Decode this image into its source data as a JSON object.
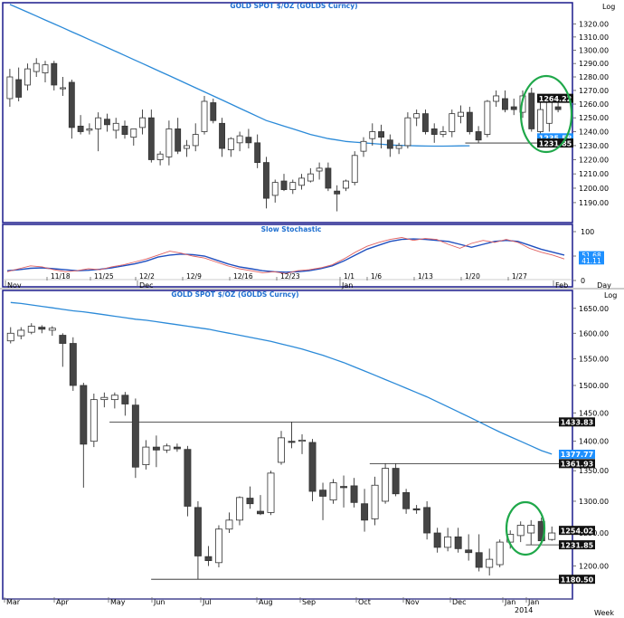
{
  "colors": {
    "background": "#ffffff",
    "frame": "#1a1a8c",
    "title": "#1e6fd0",
    "ma_line": "#2b8ad8",
    "candle": "#333333",
    "highlight_circle": "#1fa84a",
    "stoch_k": "#1f4fbf",
    "stoch_d": "#e06060",
    "tag_black": "#111111",
    "tag_blue": "#1e90ff"
  },
  "chart_data": [
    {
      "panel": "daily-price",
      "type": "candlestick",
      "title": "GOLD SPOT $/OZ (GOLDS Curncy)",
      "scale_label": "Log",
      "y_ticks": [
        1190,
        1200,
        1210,
        1220,
        1230,
        1240,
        1250,
        1260,
        1270,
        1280,
        1290,
        1300,
        1310,
        1320
      ],
      "y_tick_labels": [
        "1190.00",
        "1200.00",
        "1210.00",
        "1220.00",
        "1230.00",
        "1240.00",
        "1250.00",
        "1260.00",
        "1270.00",
        "1280.00",
        "1290.00",
        "1300.00",
        "1310.00",
        "1320.00"
      ],
      "ylim": [
        1180,
        1330
      ],
      "candles": [
        {
          "o": 1264,
          "h": 1286,
          "l": 1258,
          "c": 1280
        },
        {
          "o": 1278,
          "h": 1287,
          "l": 1262,
          "c": 1265
        },
        {
          "o": 1274,
          "h": 1290,
          "l": 1270,
          "c": 1286
        },
        {
          "o": 1284,
          "h": 1294,
          "l": 1280,
          "c": 1290
        },
        {
          "o": 1283,
          "h": 1292,
          "l": 1276,
          "c": 1289
        },
        {
          "o": 1290,
          "h": 1292,
          "l": 1270,
          "c": 1274
        },
        {
          "o": 1272,
          "h": 1280,
          "l": 1266,
          "c": 1272
        },
        {
          "o": 1276,
          "h": 1278,
          "l": 1235,
          "c": 1243
        },
        {
          "o": 1244,
          "h": 1252,
          "l": 1238,
          "c": 1240
        },
        {
          "o": 1241,
          "h": 1246,
          "l": 1238,
          "c": 1242
        },
        {
          "o": 1242,
          "h": 1254,
          "l": 1226,
          "c": 1250
        },
        {
          "o": 1249,
          "h": 1253,
          "l": 1240,
          "c": 1245
        },
        {
          "o": 1241,
          "h": 1250,
          "l": 1235,
          "c": 1246
        },
        {
          "o": 1244,
          "h": 1248,
          "l": 1235,
          "c": 1238
        },
        {
          "o": 1236,
          "h": 1242,
          "l": 1230,
          "c": 1242
        },
        {
          "o": 1243,
          "h": 1256,
          "l": 1238,
          "c": 1250
        },
        {
          "o": 1250,
          "h": 1256,
          "l": 1218,
          "c": 1220
        },
        {
          "o": 1220,
          "h": 1226,
          "l": 1216,
          "c": 1224
        },
        {
          "o": 1222,
          "h": 1248,
          "l": 1216,
          "c": 1242
        },
        {
          "o": 1242,
          "h": 1250,
          "l": 1224,
          "c": 1226
        },
        {
          "o": 1228,
          "h": 1234,
          "l": 1222,
          "c": 1230
        },
        {
          "o": 1230,
          "h": 1246,
          "l": 1226,
          "c": 1238
        },
        {
          "o": 1240,
          "h": 1266,
          "l": 1238,
          "c": 1262
        },
        {
          "o": 1261,
          "h": 1264,
          "l": 1246,
          "c": 1248
        },
        {
          "o": 1246,
          "h": 1250,
          "l": 1222,
          "c": 1228
        },
        {
          "o": 1227,
          "h": 1236,
          "l": 1222,
          "c": 1235
        },
        {
          "o": 1232,
          "h": 1240,
          "l": 1226,
          "c": 1237
        },
        {
          "o": 1236,
          "h": 1242,
          "l": 1228,
          "c": 1232
        },
        {
          "o": 1232,
          "h": 1238,
          "l": 1214,
          "c": 1218
        },
        {
          "o": 1218,
          "h": 1222,
          "l": 1186,
          "c": 1193
        },
        {
          "o": 1195,
          "h": 1206,
          "l": 1190,
          "c": 1204
        },
        {
          "o": 1205,
          "h": 1210,
          "l": 1198,
          "c": 1199
        },
        {
          "o": 1199,
          "h": 1206,
          "l": 1196,
          "c": 1204
        },
        {
          "o": 1202,
          "h": 1210,
          "l": 1199,
          "c": 1207
        },
        {
          "o": 1205,
          "h": 1214,
          "l": 1204,
          "c": 1210
        },
        {
          "o": 1212,
          "h": 1218,
          "l": 1206,
          "c": 1214
        },
        {
          "o": 1214,
          "h": 1218,
          "l": 1198,
          "c": 1200
        },
        {
          "o": 1198,
          "h": 1202,
          "l": 1184,
          "c": 1196
        },
        {
          "o": 1200,
          "h": 1206,
          "l": 1198,
          "c": 1205
        },
        {
          "o": 1204,
          "h": 1226,
          "l": 1202,
          "c": 1223
        },
        {
          "o": 1226,
          "h": 1236,
          "l": 1222,
          "c": 1233
        },
        {
          "o": 1235,
          "h": 1246,
          "l": 1230,
          "c": 1240
        },
        {
          "o": 1240,
          "h": 1245,
          "l": 1228,
          "c": 1236
        },
        {
          "o": 1234,
          "h": 1238,
          "l": 1222,
          "c": 1228
        },
        {
          "o": 1228,
          "h": 1232,
          "l": 1224,
          "c": 1230
        },
        {
          "o": 1230,
          "h": 1254,
          "l": 1228,
          "c": 1250
        },
        {
          "o": 1250,
          "h": 1256,
          "l": 1244,
          "c": 1253
        },
        {
          "o": 1253,
          "h": 1256,
          "l": 1238,
          "c": 1240
        },
        {
          "o": 1242,
          "h": 1246,
          "l": 1232,
          "c": 1238
        },
        {
          "o": 1238,
          "h": 1244,
          "l": 1236,
          "c": 1240
        },
        {
          "o": 1240,
          "h": 1256,
          "l": 1236,
          "c": 1253
        },
        {
          "o": 1251,
          "h": 1259,
          "l": 1246,
          "c": 1254
        },
        {
          "o": 1254,
          "h": 1258,
          "l": 1238,
          "c": 1240
        },
        {
          "o": 1240,
          "h": 1244,
          "l": 1232,
          "c": 1234
        },
        {
          "o": 1238,
          "h": 1263,
          "l": 1236,
          "c": 1262
        },
        {
          "o": 1262,
          "h": 1270,
          "l": 1258,
          "c": 1266
        },
        {
          "o": 1264,
          "h": 1270,
          "l": 1254,
          "c": 1256
        },
        {
          "o": 1258,
          "h": 1264,
          "l": 1252,
          "c": 1256
        },
        {
          "o": 1254,
          "h": 1270,
          "l": 1250,
          "c": 1266
        },
        {
          "o": 1268,
          "h": 1272,
          "l": 1240,
          "c": 1242
        },
        {
          "o": 1240,
          "h": 1262,
          "l": 1236,
          "c": 1256
        },
        {
          "o": 1246,
          "h": 1262,
          "l": 1240,
          "c": 1262
        },
        {
          "o": 1258,
          "h": 1262,
          "l": 1254,
          "c": 1256
        }
      ],
      "moving_average": [
        1335,
        1332,
        1329,
        1326,
        1323,
        1320,
        1317,
        1314,
        1311,
        1308,
        1305,
        1302,
        1299,
        1296,
        1293,
        1290,
        1287,
        1284,
        1281,
        1278,
        1275,
        1272,
        1269,
        1266,
        1263,
        1260,
        1257,
        1254,
        1251,
        1248,
        1246,
        1244,
        1242,
        1240,
        1238,
        1236.5,
        1235,
        1234,
        1233,
        1232.5,
        1232,
        1231.5,
        1231,
        1230.5,
        1230.2,
        1230,
        1229.8,
        1229.7,
        1229.6,
        1229.6,
        1229.7,
        1229.8,
        1229.9
      ],
      "horizontal_line": {
        "value": 1231.85,
        "from_index": 52
      },
      "value_tags": [
        {
          "value": 1264.22,
          "label": "1264.22",
          "style": "black"
        },
        {
          "value": 1235.58,
          "label": "1235.58",
          "style": "blue"
        },
        {
          "value": 1231.85,
          "label": "1231.85",
          "style": "black"
        }
      ],
      "x_labels": [
        "Nov",
        "Dec",
        "Jan",
        "Feb"
      ]
    },
    {
      "panel": "slow-stochastic",
      "type": "line",
      "title": "Slow Stochastic",
      "y_ticks": [
        0,
        50,
        100
      ],
      "ylim": [
        0,
        100
      ],
      "series": [
        {
          "name": "%K",
          "values": [
            20,
            22,
            25,
            26,
            24,
            22,
            20,
            21,
            23,
            26,
            30,
            34,
            40,
            48,
            52,
            54,
            53,
            50,
            42,
            34,
            28,
            24,
            20,
            18,
            17,
            18,
            20,
            24,
            30,
            40,
            52,
            64,
            72,
            80,
            84,
            85,
            84,
            82,
            80,
            74,
            68,
            74,
            80,
            82,
            80,
            72,
            64,
            58,
            52
          ]
        },
        {
          "name": "%D",
          "values": [
            18,
            24,
            30,
            28,
            22,
            18,
            20,
            24,
            22,
            28,
            32,
            38,
            44,
            52,
            60,
            56,
            50,
            46,
            38,
            30,
            24,
            20,
            16,
            18,
            14,
            20,
            22,
            26,
            32,
            44,
            58,
            70,
            78,
            84,
            88,
            82,
            86,
            84,
            74,
            66,
            76,
            82,
            78,
            84,
            78,
            66,
            58,
            52,
            44
          ]
        }
      ],
      "value_tags": [
        {
          "value": 51.68,
          "label": "51.68",
          "style": "blue"
        },
        {
          "value": 41.11,
          "label": "41.11",
          "style": "blue"
        }
      ],
      "x_labels": [
        "11/18",
        "11/25",
        "12/2",
        "12/9",
        "12/16",
        "12/23",
        "1/1",
        "1/6",
        "1/13",
        "1/20",
        "1/27"
      ],
      "axis_unit": "Day"
    },
    {
      "panel": "weekly-price",
      "type": "candlestick",
      "title": "GOLD SPOT $/OZ (GOLDS Curncy)",
      "scale_label": "Log",
      "y_ticks": [
        1200,
        1250,
        1300,
        1350,
        1400,
        1450,
        1500,
        1550,
        1600,
        1650
      ],
      "y_tick_labels": [
        "1200.00",
        "1250.00",
        "1300.00",
        "1350.00",
        "1400.00",
        "1450.00",
        "1500.00",
        "1550.00",
        "1600.00",
        "1650.00"
      ],
      "ylim": [
        1165,
        1670
      ],
      "candles": [
        {
          "o": 1585,
          "h": 1612,
          "l": 1580,
          "c": 1600
        },
        {
          "o": 1595,
          "h": 1612,
          "l": 1588,
          "c": 1606
        },
        {
          "o": 1602,
          "h": 1620,
          "l": 1598,
          "c": 1614
        },
        {
          "o": 1612,
          "h": 1616,
          "l": 1600,
          "c": 1608
        },
        {
          "o": 1606,
          "h": 1614,
          "l": 1595,
          "c": 1610
        },
        {
          "o": 1596,
          "h": 1600,
          "l": 1535,
          "c": 1580
        },
        {
          "o": 1580,
          "h": 1592,
          "l": 1490,
          "c": 1500
        },
        {
          "o": 1500,
          "h": 1505,
          "l": 1322,
          "c": 1395
        },
        {
          "o": 1400,
          "h": 1485,
          "l": 1390,
          "c": 1474
        },
        {
          "o": 1474,
          "h": 1487,
          "l": 1460,
          "c": 1478
        },
        {
          "o": 1474,
          "h": 1487,
          "l": 1458,
          "c": 1482
        },
        {
          "o": 1482,
          "h": 1488,
          "l": 1445,
          "c": 1466
        },
        {
          "o": 1464,
          "h": 1476,
          "l": 1338,
          "c": 1356
        },
        {
          "o": 1360,
          "h": 1402,
          "l": 1352,
          "c": 1390
        },
        {
          "o": 1390,
          "h": 1410,
          "l": 1356,
          "c": 1385
        },
        {
          "o": 1385,
          "h": 1396,
          "l": 1380,
          "c": 1392
        },
        {
          "o": 1390,
          "h": 1396,
          "l": 1382,
          "c": 1387
        },
        {
          "o": 1386,
          "h": 1392,
          "l": 1276,
          "c": 1292
        },
        {
          "o": 1290,
          "h": 1300,
          "l": 1180,
          "c": 1215
        },
        {
          "o": 1214,
          "h": 1230,
          "l": 1200,
          "c": 1208
        },
        {
          "o": 1205,
          "h": 1262,
          "l": 1198,
          "c": 1256
        },
        {
          "o": 1256,
          "h": 1282,
          "l": 1250,
          "c": 1270
        },
        {
          "o": 1270,
          "h": 1308,
          "l": 1262,
          "c": 1306
        },
        {
          "o": 1305,
          "h": 1324,
          "l": 1288,
          "c": 1296
        },
        {
          "o": 1284,
          "h": 1310,
          "l": 1278,
          "c": 1280
        },
        {
          "o": 1282,
          "h": 1350,
          "l": 1278,
          "c": 1346
        },
        {
          "o": 1364,
          "h": 1418,
          "l": 1360,
          "c": 1406
        },
        {
          "o": 1400,
          "h": 1434,
          "l": 1388,
          "c": 1398
        },
        {
          "o": 1400,
          "h": 1412,
          "l": 1378,
          "c": 1402
        },
        {
          "o": 1398,
          "h": 1404,
          "l": 1300,
          "c": 1316
        },
        {
          "o": 1318,
          "h": 1330,
          "l": 1270,
          "c": 1308
        },
        {
          "o": 1302,
          "h": 1336,
          "l": 1296,
          "c": 1330
        },
        {
          "o": 1324,
          "h": 1342,
          "l": 1290,
          "c": 1322
        },
        {
          "o": 1325,
          "h": 1338,
          "l": 1290,
          "c": 1298
        },
        {
          "o": 1296,
          "h": 1320,
          "l": 1252,
          "c": 1270
        },
        {
          "o": 1272,
          "h": 1340,
          "l": 1262,
          "c": 1326
        },
        {
          "o": 1300,
          "h": 1362,
          "l": 1296,
          "c": 1354
        },
        {
          "o": 1354,
          "h": 1362,
          "l": 1308,
          "c": 1312
        },
        {
          "o": 1314,
          "h": 1320,
          "l": 1280,
          "c": 1288
        },
        {
          "o": 1288,
          "h": 1294,
          "l": 1280,
          "c": 1286
        },
        {
          "o": 1290,
          "h": 1300,
          "l": 1240,
          "c": 1250
        },
        {
          "o": 1250,
          "h": 1258,
          "l": 1220,
          "c": 1228
        },
        {
          "o": 1228,
          "h": 1258,
          "l": 1222,
          "c": 1244
        },
        {
          "o": 1244,
          "h": 1258,
          "l": 1220,
          "c": 1226
        },
        {
          "o": 1224,
          "h": 1248,
          "l": 1208,
          "c": 1220
        },
        {
          "o": 1220,
          "h": 1248,
          "l": 1192,
          "c": 1198
        },
        {
          "o": 1198,
          "h": 1226,
          "l": 1186,
          "c": 1210
        },
        {
          "o": 1202,
          "h": 1240,
          "l": 1198,
          "c": 1236
        },
        {
          "o": 1236,
          "h": 1254,
          "l": 1226,
          "c": 1248
        },
        {
          "o": 1246,
          "h": 1268,
          "l": 1236,
          "c": 1262
        },
        {
          "o": 1250,
          "h": 1270,
          "l": 1232,
          "c": 1262
        },
        {
          "o": 1268,
          "h": 1274,
          "l": 1238,
          "c": 1238
        },
        {
          "o": 1240,
          "h": 1260,
          "l": 1238,
          "c": 1250
        }
      ],
      "moving_average": [
        1662,
        1660,
        1657,
        1654,
        1651,
        1648,
        1645,
        1643,
        1640,
        1637,
        1634,
        1631,
        1628,
        1626,
        1623,
        1620,
        1617,
        1614,
        1611,
        1608,
        1604,
        1600,
        1596,
        1592,
        1588,
        1584,
        1579,
        1574,
        1569,
        1563,
        1557,
        1550,
        1543,
        1535,
        1527,
        1519,
        1511,
        1503,
        1495,
        1487,
        1479,
        1470,
        1461,
        1452,
        1443,
        1434,
        1425,
        1416,
        1408,
        1400,
        1392,
        1384,
        1378
      ],
      "horizontal_lines": [
        {
          "value": 1433.83,
          "from_index": 10
        },
        {
          "value": 1361.93,
          "from_index": 35
        },
        {
          "value": 1231.85,
          "from_index": 50
        },
        {
          "value": 1180.5,
          "from_index": 14
        }
      ],
      "value_tags": [
        {
          "value": 1433.83,
          "label": "1433.83",
          "style": "black"
        },
        {
          "value": 1377.77,
          "label": "1377.77",
          "style": "blue"
        },
        {
          "value": 1361.93,
          "label": "1361.93",
          "style": "black"
        },
        {
          "value": 1254.02,
          "label": "1254.02",
          "style": "black"
        },
        {
          "value": 1231.85,
          "label": "1231.85",
          "style": "black"
        },
        {
          "value": 1180.5,
          "label": "1180.50",
          "style": "black"
        }
      ],
      "x_labels": [
        "Mar",
        "Apr",
        "May",
        "Jun",
        "Jul",
        "Aug",
        "Sep",
        "Oct",
        "Nov",
        "Dec",
        "Jan",
        "Jan"
      ],
      "year_label": "2014",
      "axis_unit": "Week"
    }
  ]
}
